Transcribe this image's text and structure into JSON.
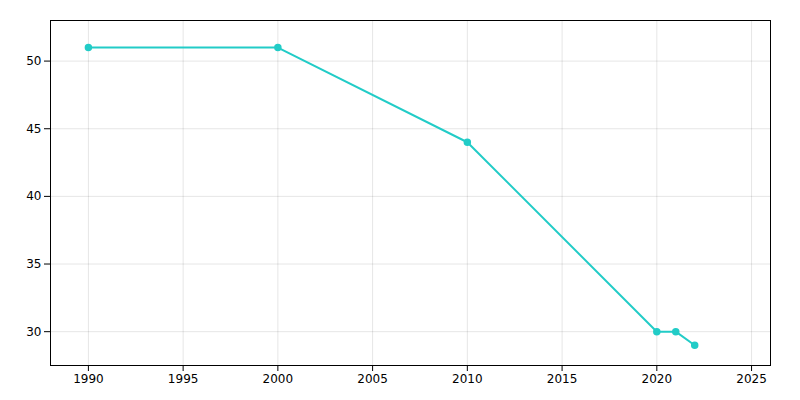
{
  "chart_data": {
    "type": "line",
    "x": [
      1990,
      2000,
      2010,
      2020,
      2021,
      2022
    ],
    "values": [
      51,
      51,
      44,
      30,
      30,
      29
    ],
    "color": "#22CCC7",
    "marker": "circle",
    "xlim": [
      1988,
      2026
    ],
    "ylim": [
      27.5,
      53
    ],
    "xticks": [
      1990,
      1995,
      2000,
      2005,
      2010,
      2015,
      2020,
      2025
    ],
    "yticks": [
      30,
      35,
      40,
      45,
      50
    ],
    "grid": true
  }
}
